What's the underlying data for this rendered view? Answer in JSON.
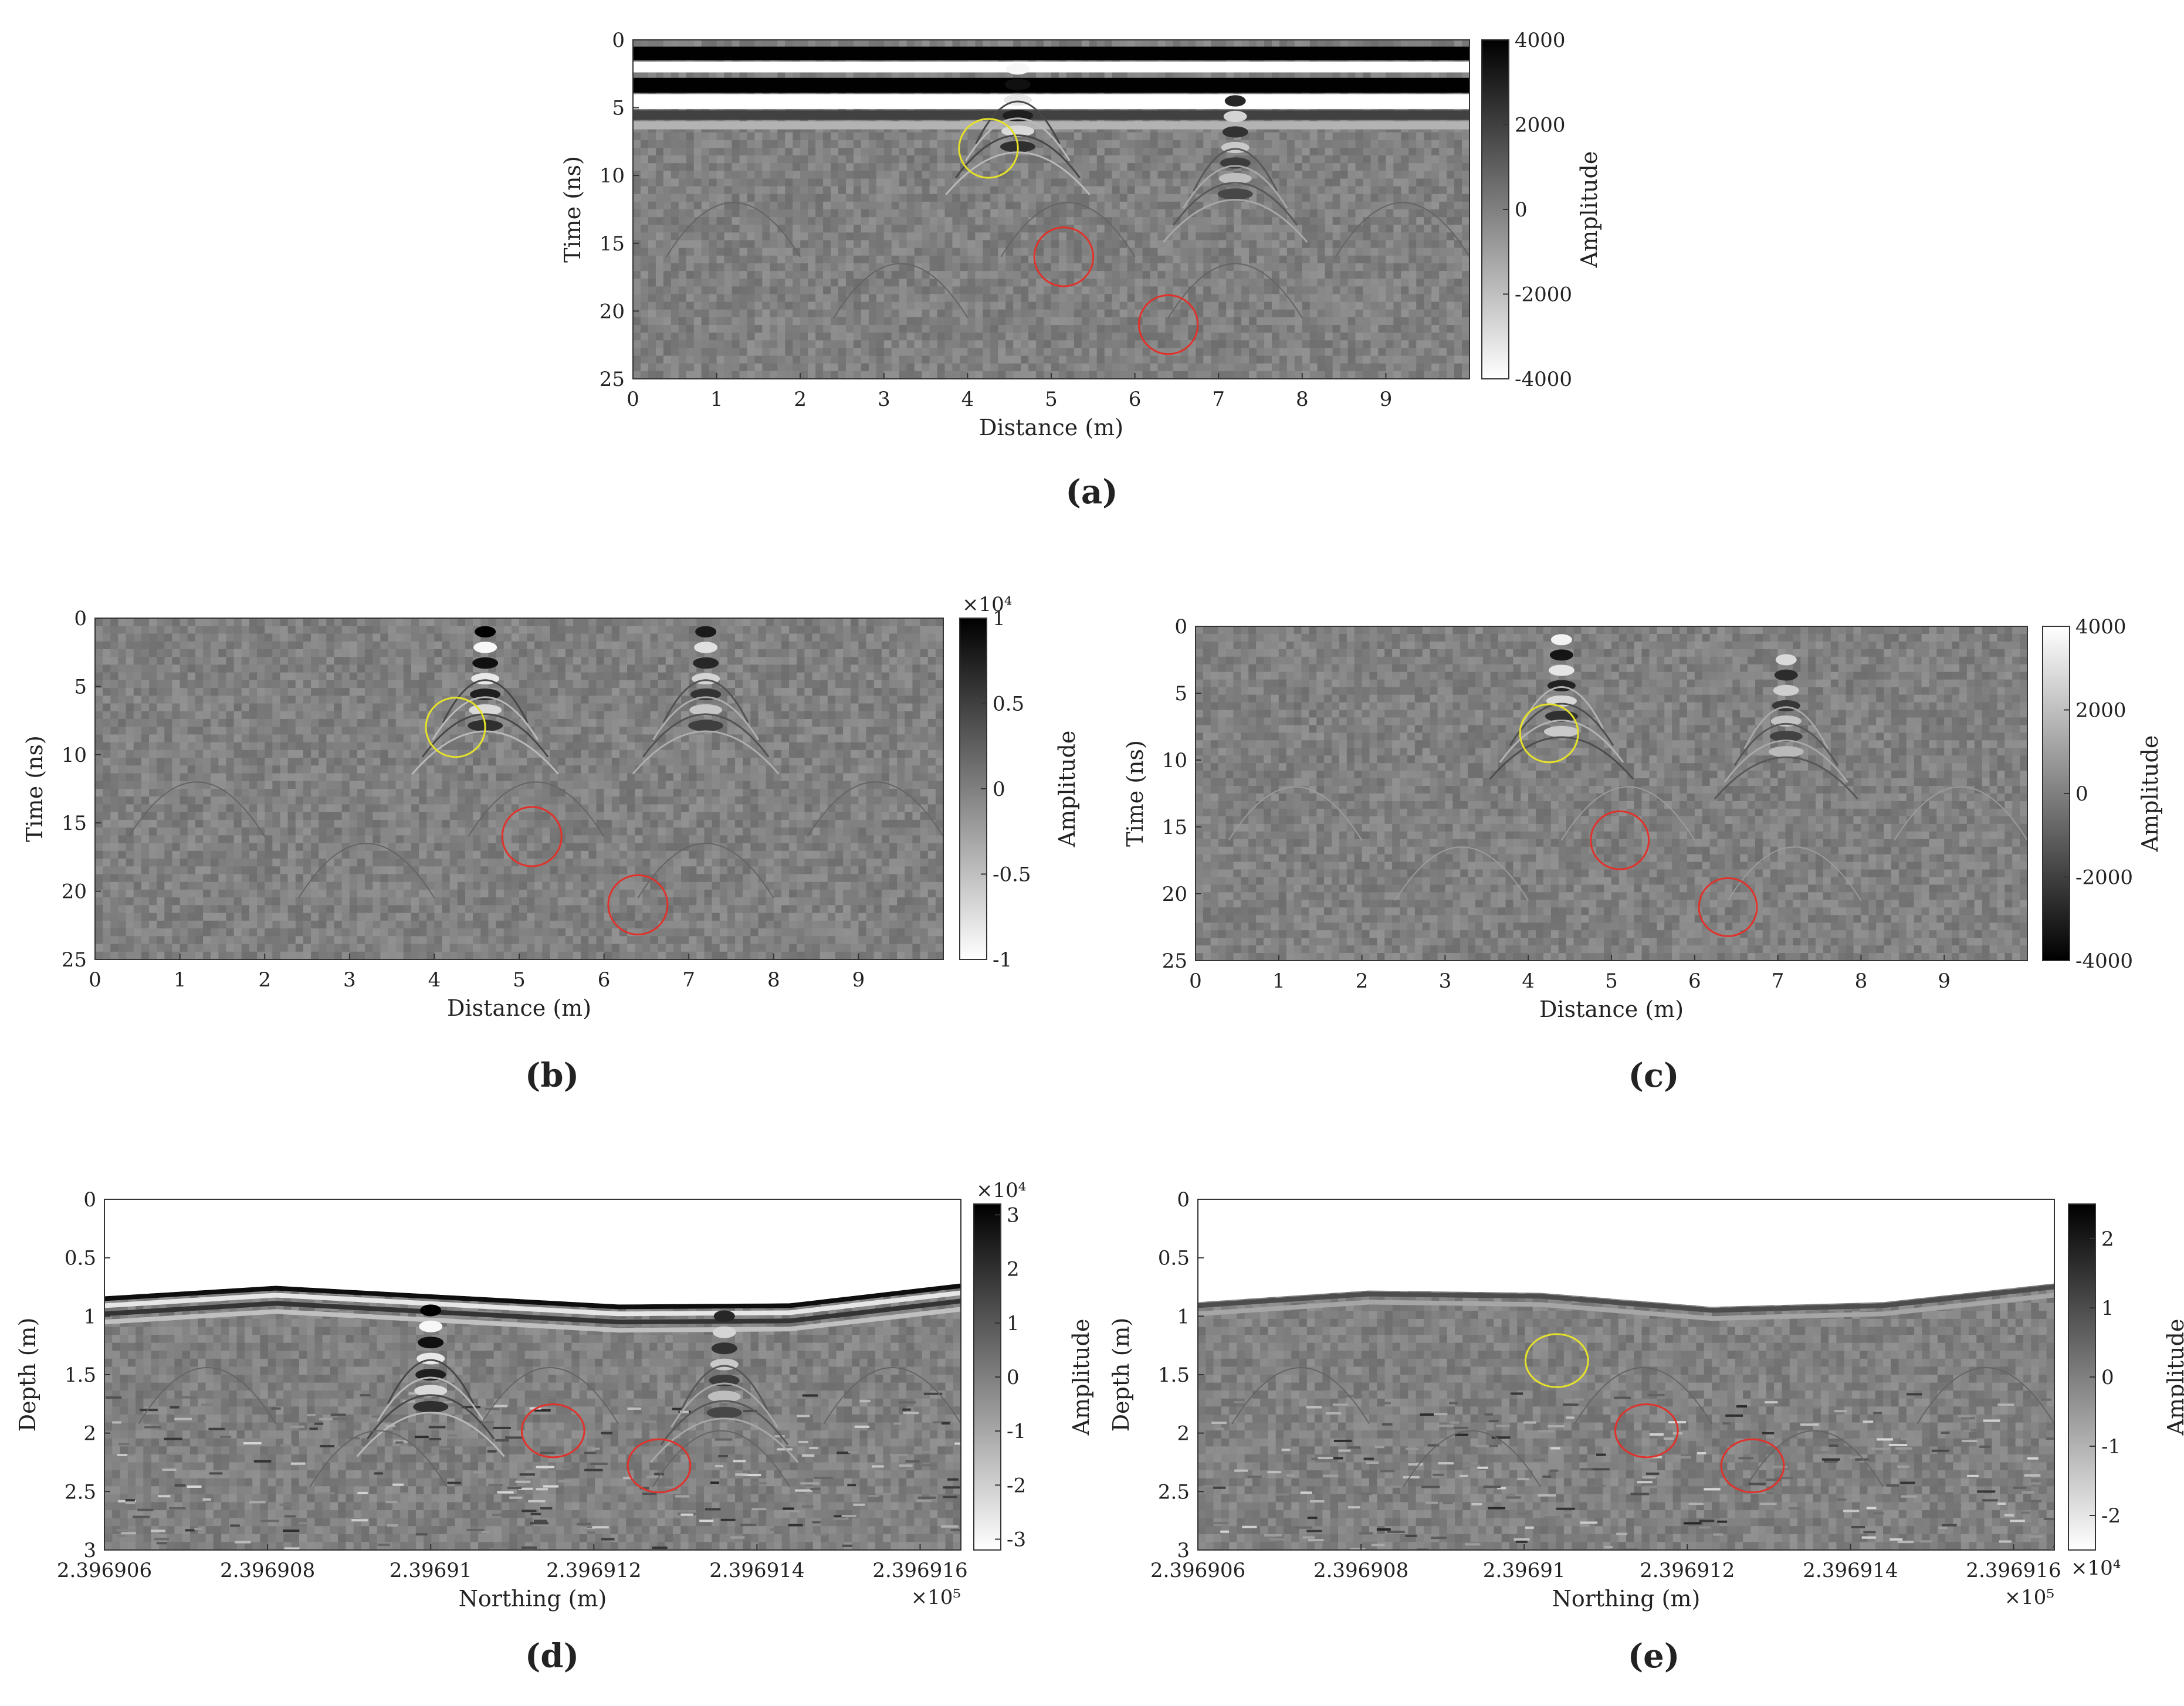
{
  "chart_data": [
    {
      "type": "heatmap",
      "panel_label": "(a)",
      "xlabel": "Distance (m)",
      "ylabel": "Time (ns)",
      "colorbar_label": "Amplitude",
      "xlim": [
        0,
        10
      ],
      "ylim": [
        0,
        25
      ],
      "y_reversed": true,
      "x_ticks": [
        "0",
        "1",
        "2",
        "3",
        "4",
        "5",
        "6",
        "7",
        "8",
        "9"
      ],
      "y_ticks": [
        "0",
        "5",
        "10",
        "15",
        "20",
        "25"
      ],
      "colorbar_ticks": [
        "4000",
        "2000",
        "0",
        "-2000",
        "-4000"
      ],
      "colorbar_range": [
        -4000,
        4000
      ],
      "colormap": "black-high",
      "colorbar_exponent": "",
      "x_exponent": "",
      "surface_time": null,
      "bands": true,
      "hyperbolas": [
        {
          "x": 4.6,
          "t": 1.0,
          "amp": 1.0
        },
        {
          "x": 7.2,
          "t": 4.5,
          "amp": 0.7
        }
      ],
      "circles": [
        {
          "color": "yellow",
          "cx": 4.25,
          "cy": 8.0,
          "r": 0.62
        },
        {
          "color": "red",
          "cx": 5.15,
          "cy": 16.0,
          "r": 0.62
        },
        {
          "color": "red",
          "cx": 6.4,
          "cy": 21.0,
          "r": 0.62
        }
      ]
    },
    {
      "type": "heatmap",
      "panel_label": "(b)",
      "xlabel": "Distance (m)",
      "ylabel": "Time (ns)",
      "colorbar_label": "Amplitude",
      "xlim": [
        0,
        10
      ],
      "ylim": [
        0,
        25
      ],
      "y_reversed": true,
      "x_ticks": [
        "0",
        "1",
        "2",
        "3",
        "4",
        "5",
        "6",
        "7",
        "8",
        "9"
      ],
      "y_ticks": [
        "0",
        "5",
        "10",
        "15",
        "20",
        "25"
      ],
      "colorbar_ticks": [
        "1",
        "0.5",
        "0",
        "-0.5",
        "-1"
      ],
      "colorbar_range": [
        -10000,
        10000
      ],
      "colormap": "black-high",
      "colorbar_exponent": "×10⁴",
      "x_exponent": "",
      "surface_time": null,
      "bands": false,
      "hyperbolas": [
        {
          "x": 4.6,
          "t": 1.0,
          "amp": 1.0
        },
        {
          "x": 7.2,
          "t": 1.0,
          "amp": 0.8
        }
      ],
      "circles": [
        {
          "color": "yellow",
          "cx": 4.25,
          "cy": 8.0,
          "r": 0.62
        },
        {
          "color": "red",
          "cx": 5.15,
          "cy": 16.0,
          "r": 0.62
        },
        {
          "color": "red",
          "cx": 6.4,
          "cy": 21.0,
          "r": 0.62
        }
      ]
    },
    {
      "type": "heatmap",
      "panel_label": "(c)",
      "xlabel": "Distance (m)",
      "ylabel": "Time (ns)",
      "colorbar_label": "Amplitude",
      "xlim": [
        0,
        10
      ],
      "ylim": [
        0,
        25
      ],
      "y_reversed": true,
      "x_ticks": [
        "0",
        "1",
        "2",
        "3",
        "4",
        "5",
        "6",
        "7",
        "8",
        "9"
      ],
      "y_ticks": [
        "0",
        "5",
        "10",
        "15",
        "20",
        "25"
      ],
      "colorbar_ticks": [
        "4000",
        "2000",
        "0",
        "-2000",
        "-4000"
      ],
      "colorbar_range": [
        -4000,
        4000
      ],
      "colormap": "white-high",
      "colorbar_exponent": "",
      "x_exponent": "",
      "surface_time": null,
      "bands": false,
      "hyperbolas": [
        {
          "x": 4.4,
          "t": 1.0,
          "amp": 0.9
        },
        {
          "x": 7.1,
          "t": 2.5,
          "amp": 0.7
        }
      ],
      "circles": [
        {
          "color": "yellow",
          "cx": 4.25,
          "cy": 8.0,
          "r": 0.62
        },
        {
          "color": "red",
          "cx": 5.1,
          "cy": 16.0,
          "r": 0.62
        },
        {
          "color": "red",
          "cx": 6.4,
          "cy": 21.0,
          "r": 0.62
        }
      ]
    },
    {
      "type": "heatmap",
      "panel_label": "(d)",
      "xlabel": "Northing (m)",
      "ylabel": "Depth (m)",
      "colorbar_label": "Amplitude",
      "xlim": [
        2.396906,
        2.3969165
      ],
      "ylim": [
        0,
        3
      ],
      "y_reversed": true,
      "x_ticks": [
        "2.396906",
        "2.396908",
        "2.39691",
        "2.396912",
        "2.396914",
        "2.396916"
      ],
      "y_ticks": [
        "0",
        "0.5",
        "1",
        "1.5",
        "2",
        "2.5",
        "3"
      ],
      "colorbar_ticks": [
        "3",
        "2",
        "1",
        "0",
        "-1",
        "-2",
        "-3"
      ],
      "colorbar_range": [
        -32000,
        32000
      ],
      "colormap": "black-high",
      "colorbar_exponent": "×10⁴",
      "x_exponent": "×10⁵",
      "surface_time": [
        0.83,
        0.74,
        0.82,
        0.9,
        0.89,
        0.72
      ],
      "bands": true,
      "hyperbolas": [
        {
          "x": 2.39691,
          "t": 0.95,
          "amp": 1.0
        },
        {
          "x": 2.3969136,
          "t": 1.0,
          "amp": 0.7
        }
      ],
      "circles": [
        {
          "color": "red",
          "cx": 2.3969115,
          "cy": 1.98,
          "r": 0.72
        },
        {
          "color": "red",
          "cx": 2.3969128,
          "cy": 2.28,
          "r": 0.72
        }
      ]
    },
    {
      "type": "heatmap",
      "panel_label": "(e)",
      "xlabel": "Northing (m)",
      "ylabel": "Depth (m)",
      "colorbar_label": "Amplitude",
      "xlim": [
        2.396906,
        2.3969165
      ],
      "ylim": [
        0,
        3
      ],
      "y_reversed": true,
      "x_ticks": [
        "2.396906",
        "2.396908",
        "2.39691",
        "2.396912",
        "2.396914",
        "2.396916"
      ],
      "y_ticks": [
        "0",
        "0.5",
        "1",
        "1.5",
        "2",
        "2.5",
        "3"
      ],
      "colorbar_ticks": [
        "2",
        "1",
        "0",
        "-1",
        "-2"
      ],
      "colorbar_range": [
        -25000,
        25000
      ],
      "colormap": "black-high",
      "colorbar_exponent": "×10⁴",
      "x_exponent": "×10⁵",
      "surface_time": [
        0.88,
        0.78,
        0.8,
        0.92,
        0.88,
        0.72
      ],
      "bands": false,
      "hyperbolas": [],
      "circles": [
        {
          "color": "yellow",
          "cx": 2.3969104,
          "cy": 1.38,
          "r": 0.72
        },
        {
          "color": "red",
          "cx": 2.3969115,
          "cy": 1.98,
          "r": 0.72
        },
        {
          "color": "red",
          "cx": 2.3969128,
          "cy": 2.28,
          "r": 0.72
        }
      ]
    }
  ]
}
